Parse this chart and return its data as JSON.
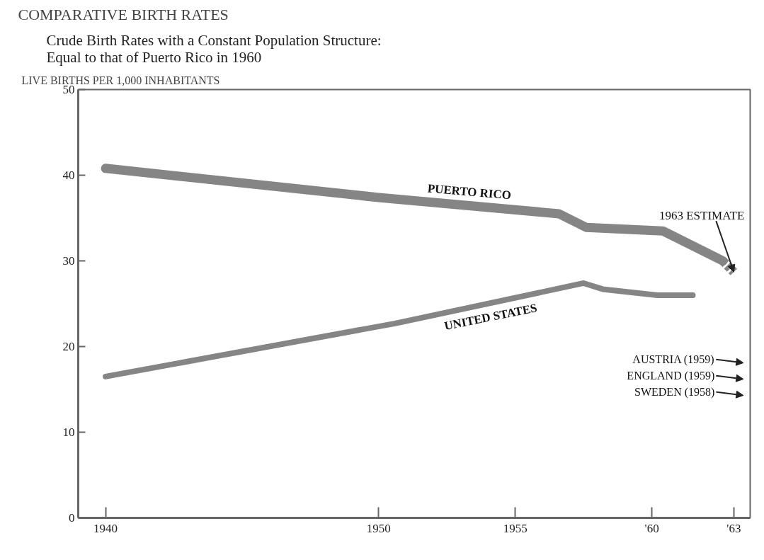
{
  "chart_data": {
    "type": "line",
    "title": "COMPARATIVE BIRTH RATES",
    "subtitle": "Crude Birth Rates with a Constant Population Structure: Equal to that of Puerto Rico  in 1960",
    "ylabel": "LIVE BIRTHS PER 1,000 INHABITANTS",
    "series": [
      {
        "name": "PUERTO RICO",
        "color": "#858585",
        "x": [
          1940,
          1950,
          1956.6,
          1957.6,
          1960.4,
          1962.6
        ],
        "values": [
          40.8,
          37.4,
          35.5,
          33.9,
          33.5,
          30.0
        ]
      },
      {
        "color": "#858585",
        "x": [
          1962.6,
          1963
        ],
        "values": [
          30.0,
          28.7
        ],
        "line_style": "dashed"
      },
      {
        "name": "UNITED STATES",
        "color": "#858585",
        "x": [
          1940,
          1950.6,
          1957.5,
          1958.2,
          1960.2,
          1961.5
        ],
        "values": [
          16.5,
          22.7,
          27.4,
          26.7,
          26.0,
          26.0
        ]
      }
    ],
    "annotations": [
      {
        "text": "1963 ESTIMATE",
        "x": 1963,
        "y": 28.7
      },
      "AUSTRIA (1959)",
      "ENGLAND (1959)",
      "SWEDEN (1958)"
    ],
    "xlim": [
      1939,
      1963.6
    ],
    "ylim": [
      0,
      50
    ],
    "xticks": [
      1940,
      1950,
      1955,
      {
        "value": 1960,
        "label": "'60"
      },
      {
        "value": 1963,
        "label": "'63"
      }
    ],
    "yticks": [
      0,
      10,
      20,
      30,
      40,
      50
    ],
    "grid": false,
    "legend": false,
    "marker": "none",
    "line_style": "solid"
  }
}
